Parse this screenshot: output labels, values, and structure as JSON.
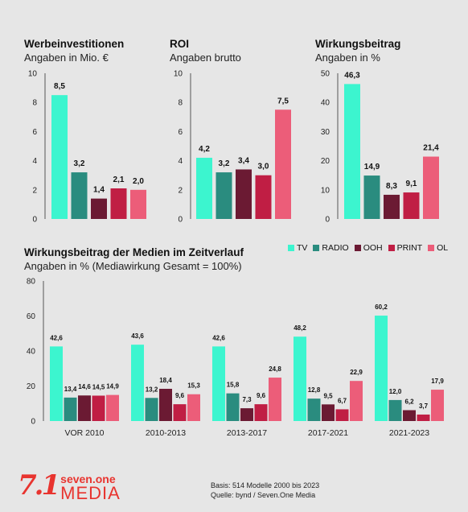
{
  "colors": {
    "TV": "#3cf5cf",
    "RADIO": "#2a8c7f",
    "OOH": "#6b1a33",
    "PRINT": "#c01e44",
    "OL": "#ec5d79"
  },
  "legend": [
    "TV",
    "RADIO",
    "OOH",
    "PRINT",
    "OL"
  ],
  "panels": {
    "werbe": {
      "title": "Werbeinvestitionen",
      "subtitle": "Angaben in Mio. €"
    },
    "roi": {
      "title": "ROI",
      "subtitle": "Angaben brutto"
    },
    "wirkung": {
      "title": "Wirkungsbeitrag",
      "subtitle": "Angaben in %"
    },
    "zeit": {
      "title": "Wirkungsbeitrag der Medien im Zeitverlauf",
      "subtitle": "Angaben in % (Mediawirkung Gesamt = 100%)"
    }
  },
  "chart_data": [
    {
      "type": "bar",
      "title": "Werbeinvestitionen",
      "subtitle": "Angaben in Mio. €",
      "categories": [
        "TV",
        "RADIO",
        "OOH",
        "PRINT",
        "OL"
      ],
      "values": [
        8.5,
        3.2,
        1.4,
        2.1,
        2.0
      ],
      "labels": [
        "8,5",
        "3,2",
        "1,4",
        "2,1",
        "2,0"
      ],
      "ylim": [
        0,
        10
      ],
      "yticks": [
        "0",
        "2",
        "4",
        "6",
        "8",
        "10"
      ]
    },
    {
      "type": "bar",
      "title": "ROI",
      "subtitle": "Angaben brutto",
      "categories": [
        "TV",
        "RADIO",
        "OOH",
        "PRINT",
        "OL"
      ],
      "values": [
        4.2,
        3.2,
        3.4,
        3.0,
        7.5
      ],
      "labels": [
        "4,2",
        "3,2",
        "3,4",
        "3,0",
        "7,5"
      ],
      "ylim": [
        0,
        10
      ],
      "yticks": [
        "0",
        "2",
        "4",
        "6",
        "8",
        "10"
      ]
    },
    {
      "type": "bar",
      "title": "Wirkungsbeitrag",
      "subtitle": "Angaben in %",
      "categories": [
        "TV",
        "RADIO",
        "OOH",
        "PRINT",
        "OL"
      ],
      "values": [
        46.3,
        14.9,
        8.3,
        9.1,
        21.4
      ],
      "labels": [
        "46,3",
        "14,9",
        "8,3",
        "9,1",
        "21,4"
      ],
      "ylim": [
        0,
        50
      ],
      "yticks": [
        "0",
        "10",
        "20",
        "30",
        "40",
        "50"
      ]
    },
    {
      "type": "bar",
      "title": "Wirkungsbeitrag der Medien im Zeitverlauf",
      "subtitle": "Angaben in % (Mediawirkung Gesamt = 100%)",
      "categories": [
        "VOR 2010",
        "2010-2013",
        "2013-2017",
        "2017-2021",
        "2021-2023"
      ],
      "series": [
        {
          "name": "TV",
          "values": [
            42.6,
            43.6,
            42.6,
            48.2,
            60.2
          ],
          "labels": [
            "42,6",
            "43,6",
            "42,6",
            "48,2",
            "60,2"
          ]
        },
        {
          "name": "RADIO",
          "values": [
            13.4,
            13.2,
            15.8,
            12.8,
            12.0
          ],
          "labels": [
            "13,4",
            "13,2",
            "15,8",
            "12,8",
            "12,0"
          ]
        },
        {
          "name": "OOH",
          "values": [
            14.6,
            18.4,
            7.3,
            9.5,
            6.2
          ],
          "labels": [
            "14,6",
            "18,4",
            "7,3",
            "9,5",
            "6,2"
          ]
        },
        {
          "name": "PRINT",
          "values": [
            14.5,
            9.6,
            9.6,
            6.7,
            3.7
          ],
          "labels": [
            "14,5",
            "9,6",
            "9,6",
            "6,7",
            "3,7"
          ]
        },
        {
          "name": "OL",
          "values": [
            14.9,
            15.3,
            24.8,
            22.9,
            17.9
          ],
          "labels": [
            "14,9",
            "15,3",
            "24,8",
            "22,9",
            "17,9"
          ]
        }
      ],
      "ylim": [
        0,
        80
      ],
      "yticks": [
        "0",
        "20",
        "40",
        "60",
        "80"
      ],
      "legend": "top-right"
    }
  ],
  "footer": {
    "logo_mark": "7.1",
    "logo_top": "seven.one",
    "logo_bottom": "MEDIA",
    "basis": "Basis: 514 Modelle 2000 bis 2023",
    "quelle": "Quelle: bynd / Seven.One Media"
  }
}
